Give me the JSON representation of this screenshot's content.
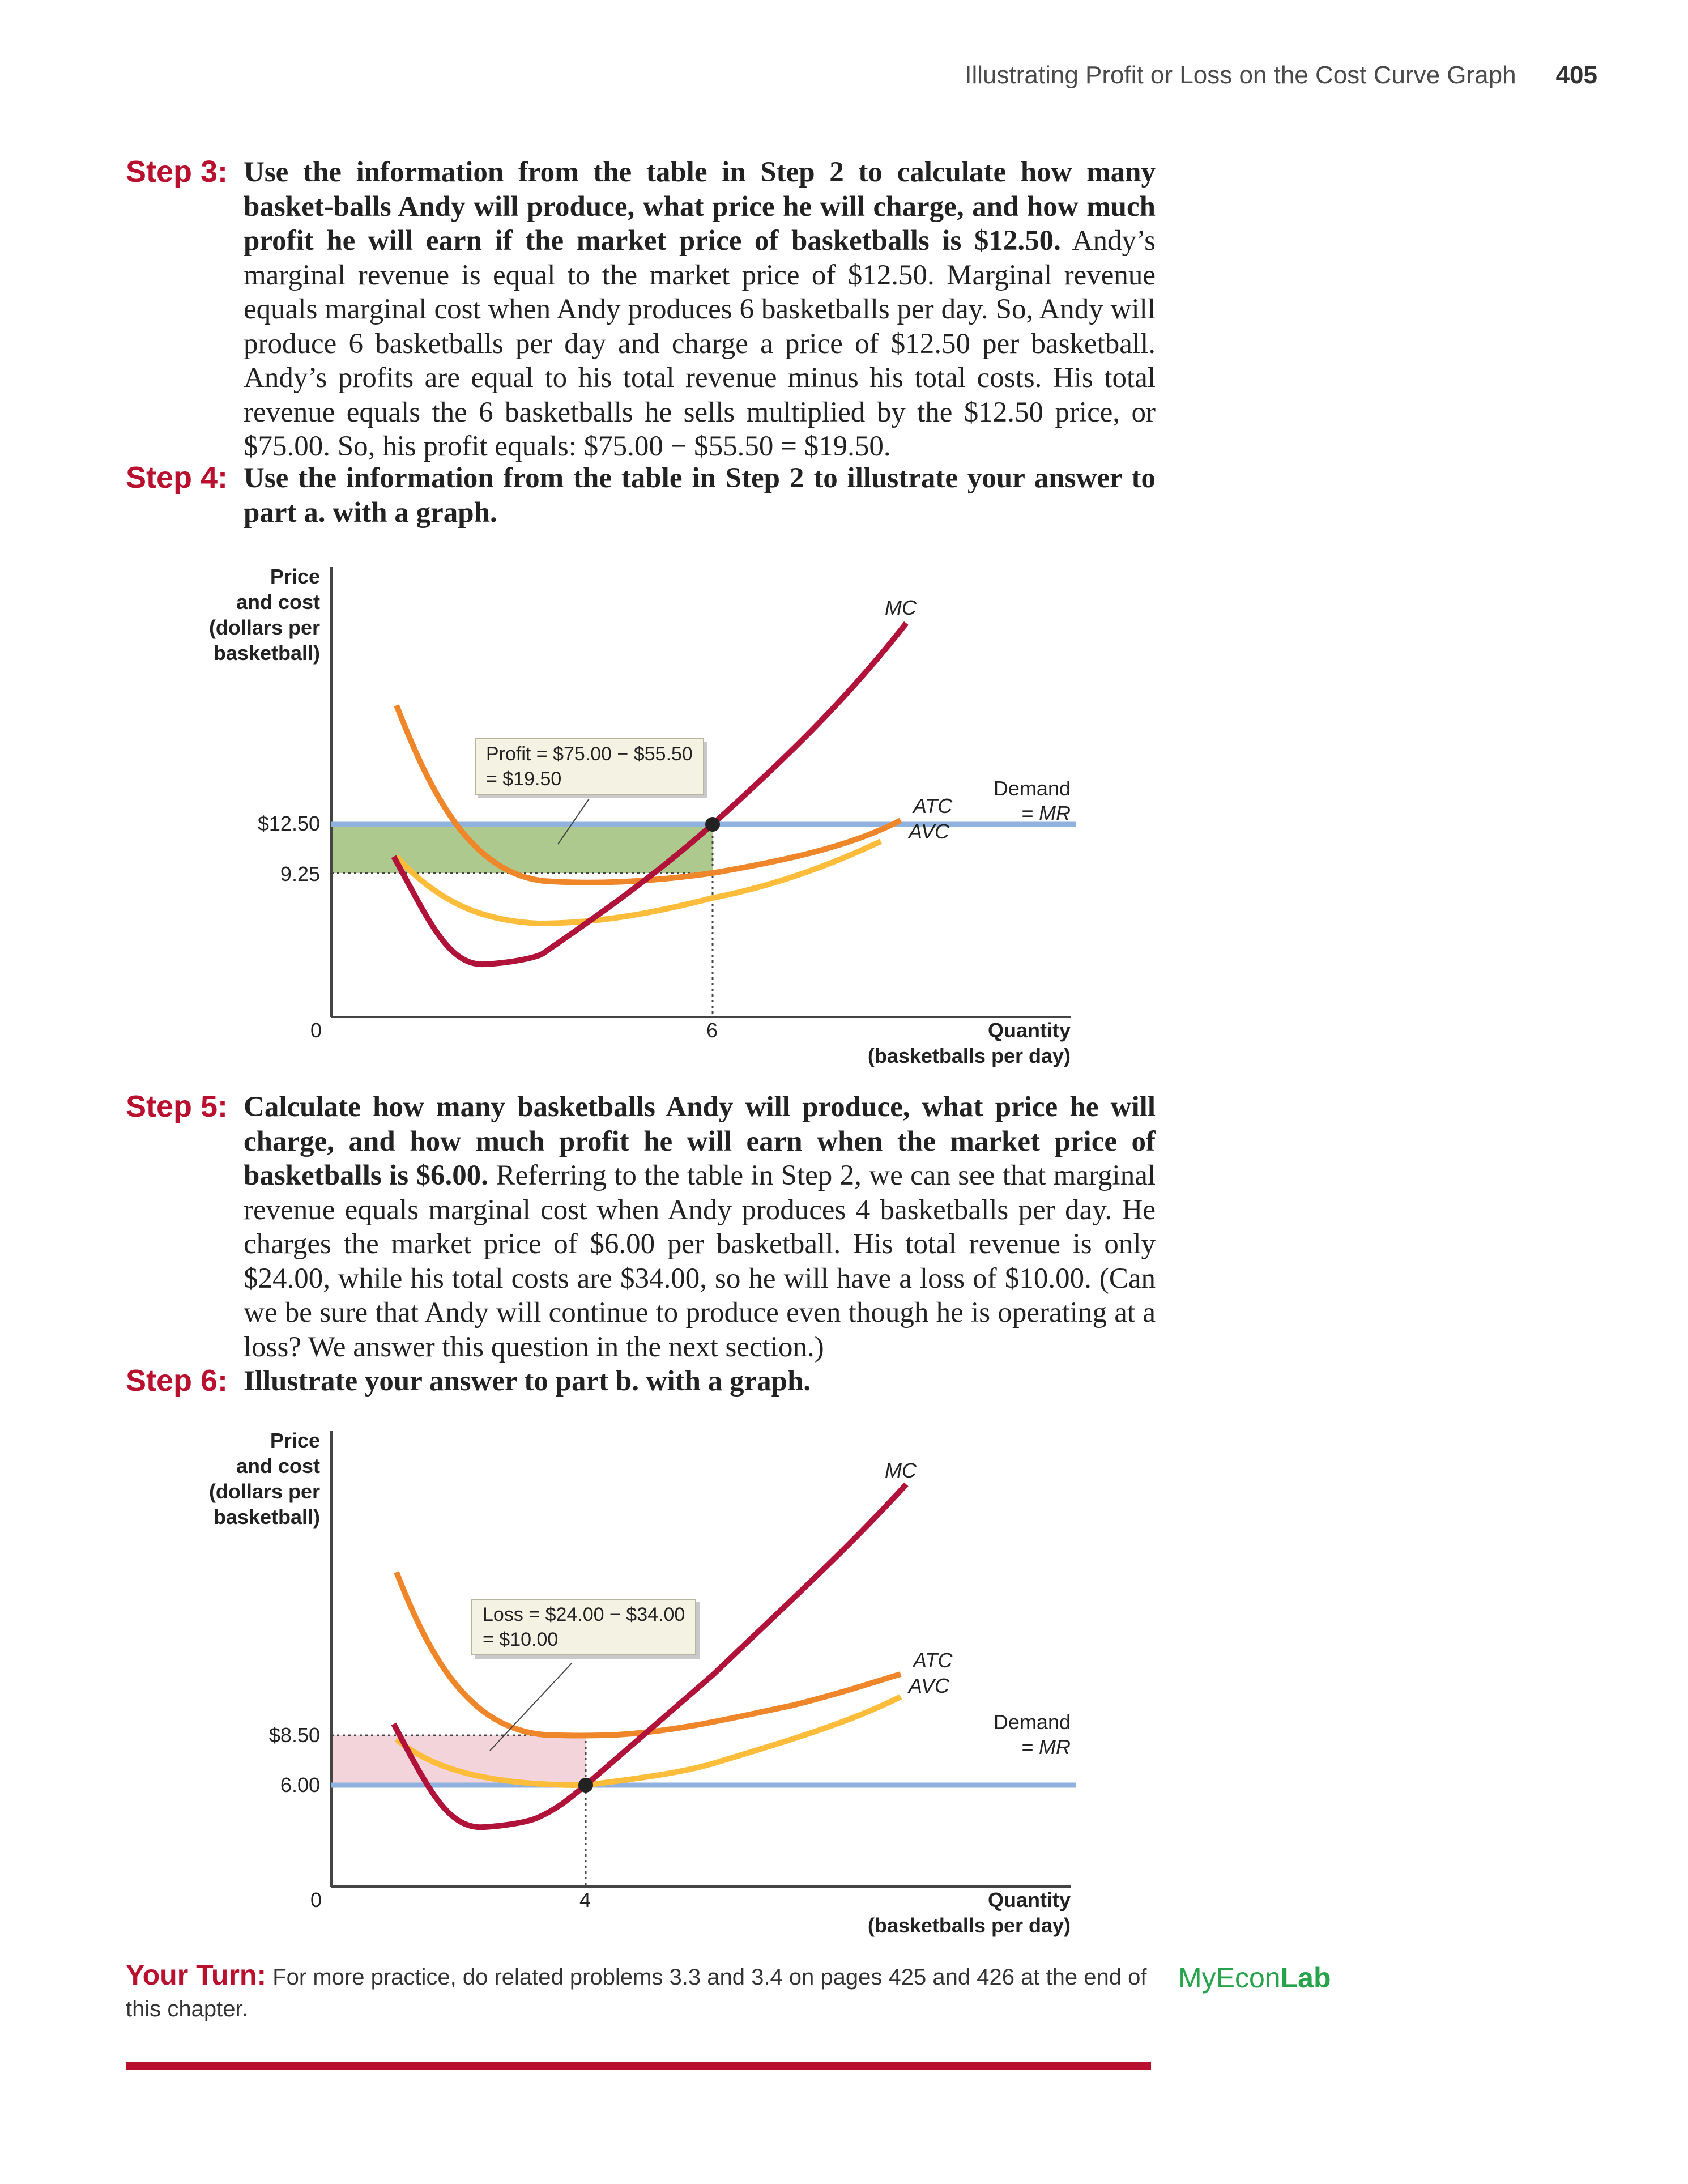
{
  "header": {
    "title": "Illustrating Profit or Loss on the Cost Curve Graph",
    "page_number": "405"
  },
  "steps": [
    {
      "label": "Step 3:",
      "bold": "Use the information from the table in Step 2 to calculate how many basket-balls Andy will produce, what price he will charge, and how much profit he will earn if the market price of basketballs is $12.50.",
      "text": " Andy’s marginal revenue is equal to the market price of $12.50. Marginal revenue equals marginal cost when Andy produces 6 basketballs per day. So, Andy will produce 6 basketballs per day and charge a price of $12.50 per basketball. Andy’s profits are equal to his total revenue minus his total costs. His total revenue equals the 6 basketballs he sells multiplied by the $12.50 price, or $75.00. So, his profit equals: $75.00 − $55.50 = $19.50."
    },
    {
      "label": "Step 4:",
      "bold": "Use the information from the table in Step 2 to illustrate your answer to part a. with a graph.",
      "text": ""
    },
    {
      "label": "Step 5:",
      "bold": "Calculate how many basketballs Andy will produce, what price he will charge, and how much profit he will earn when the market price of basketballs is $6.00.",
      "text": " Referring to the table in Step 2, we can see that marginal revenue equals marginal cost when Andy produces 4 basketballs per day. He charges the market price of $6.00 per basketball. His total revenue is only $24.00, while his total costs are $34.00, so he will have a loss of $10.00. (Can we be sure that Andy will continue to produce even though he is operating at a loss? We answer this question in the next section.)"
    },
    {
      "label": "Step 6:",
      "bold": "Illustrate your answer to part b. with a graph.",
      "text": ""
    }
  ],
  "charts": [
    {
      "y_title": [
        "Price",
        "and cost",
        "(dollars per",
        "basketball)"
      ],
      "x_title": [
        "Quantity",
        "(basketballs per day)"
      ],
      "origin_label": "0",
      "x_tick": "6",
      "y_ticks": [
        "$12.50",
        "9.25"
      ],
      "curve_labels": {
        "mc": "MC",
        "atc": "ATC",
        "avc": "AVC"
      },
      "demand_label": [
        "Demand",
        "= MR"
      ],
      "annotation": [
        "Profit = $75.00 − $55.50",
        "= $19.50"
      ],
      "colors": {
        "mc": "#b0123a",
        "atc": "#f0862a",
        "avc": "#fdbd3a",
        "demand": "#8fb2de",
        "area": "#9fbf7a"
      }
    },
    {
      "y_title": [
        "Price",
        "and cost",
        "(dollars per",
        "basketball)"
      ],
      "x_title": [
        "Quantity",
        "(basketballs per day)"
      ],
      "origin_label": "0",
      "x_tick": "4",
      "y_ticks": [
        "$8.50",
        "6.00"
      ],
      "curve_labels": {
        "mc": "MC",
        "atc": "ATC",
        "avc": "AVC"
      },
      "demand_label": [
        "Demand",
        "= MR"
      ],
      "annotation": [
        "Loss = $24.00 − $34.00",
        "= $10.00"
      ],
      "colors": {
        "mc": "#b0123a",
        "atc": "#f0862a",
        "avc": "#fdbd3a",
        "demand": "#8fb2de",
        "area": "#f1cfd6"
      }
    }
  ],
  "chart_data": [
    {
      "type": "line",
      "title": "",
      "xlabel": "Quantity (basketballs per day)",
      "ylabel": "Price and cost (dollars per basketball)",
      "series": [
        {
          "name": "MC"
        },
        {
          "name": "ATC"
        },
        {
          "name": "AVC"
        },
        {
          "name": "Demand = MR",
          "y": 12.5
        }
      ],
      "marked_x": 6,
      "marked_y": [
        12.5,
        9.25
      ],
      "profit_area": {
        "from_y": 9.25,
        "to_y": 12.5,
        "from_x": 0,
        "to_x": 6
      }
    },
    {
      "type": "line",
      "title": "",
      "xlabel": "Quantity (basketballs per day)",
      "ylabel": "Price and cost (dollars per basketball)",
      "series": [
        {
          "name": "MC"
        },
        {
          "name": "ATC"
        },
        {
          "name": "AVC"
        },
        {
          "name": "Demand = MR",
          "y": 6.0
        }
      ],
      "marked_x": 4,
      "marked_y": [
        8.5,
        6.0
      ],
      "loss_area": {
        "from_y": 6.0,
        "to_y": 8.5,
        "from_x": 0,
        "to_x": 4
      }
    }
  ],
  "your_turn": {
    "label": "Your Turn:",
    "text": " For more practice, do related problems 3.3 and 3.4 on pages 425 and 426 at the end of this chapter."
  },
  "myeconlab": {
    "my_econ": "MyEcon",
    "lab": "Lab"
  }
}
